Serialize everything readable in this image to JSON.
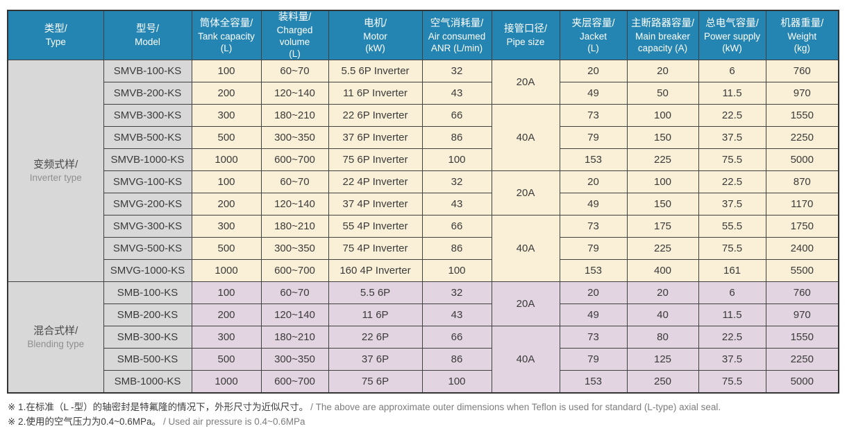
{
  "colors": {
    "header_bg": "#2585b2",
    "header_text": "#ffffff",
    "type_model_bg": "#d8d8d8",
    "inverter_rows_bg": "#faf0d7",
    "blending_rows_bg": "#e2d4e0",
    "border": "#404040",
    "body_text": "#3a3a3a",
    "secondary_text": "#8f8f8f"
  },
  "table": {
    "headers": [
      {
        "key": "type",
        "zh": "类型/",
        "en": "Type",
        "unit": ""
      },
      {
        "key": "model",
        "zh": "型号/",
        "en": "Model",
        "unit": ""
      },
      {
        "key": "tank-capacity",
        "zh": "筒体全容量/",
        "en": "Tank capacity",
        "unit": "(L)"
      },
      {
        "key": "charged-volume",
        "zh": "装料量/",
        "en": "Charged volume",
        "unit": "(L)"
      },
      {
        "key": "motor",
        "zh": "电机/",
        "en": "Motor",
        "unit": "(kW)"
      },
      {
        "key": "air-consumed",
        "zh": "空气消耗量/",
        "en": "Air consumed",
        "unit": "ANR (L/min)"
      },
      {
        "key": "pipe-size",
        "zh": "接管口径/",
        "en": "Pipe size",
        "unit": ""
      },
      {
        "key": "jacket",
        "zh": "夹层容量/",
        "en": "Jacket",
        "unit": "(L)"
      },
      {
        "key": "main-breaker",
        "zh": "主断路器容量/",
        "en": "Main breaker",
        "unit": "capacity (A)"
      },
      {
        "key": "power-supply",
        "zh": "总电气容量/",
        "en": "Power supply",
        "unit": "(kW)"
      },
      {
        "key": "weight",
        "zh": "机器重量/",
        "en": "Weight",
        "unit": "(kg)"
      }
    ],
    "groups": [
      {
        "type_zh": "变频式样/",
        "type_en": "Inverter type",
        "tint": "cream",
        "pipe_cells": [
          {
            "row": 0,
            "span": 2,
            "label": "20A"
          },
          {
            "row": 2,
            "span": 3,
            "label": "40A"
          },
          {
            "row": 5,
            "span": 2,
            "label": "20A"
          },
          {
            "row": 7,
            "span": 3,
            "label": "40A"
          }
        ],
        "rows": [
          {
            "model": "SMVB-100-KS",
            "tank": "100",
            "charged": "60~70",
            "motor": "5.5 6P Inverter",
            "air": "32",
            "jacket": "20",
            "breaker": "20",
            "power": "6",
            "weight": "760"
          },
          {
            "model": "SMVB-200-KS",
            "tank": "200",
            "charged": "120~140",
            "motor": "11 6P Inverter",
            "air": "43",
            "jacket": "49",
            "breaker": "50",
            "power": "11.5",
            "weight": "970"
          },
          {
            "model": "SMVB-300-KS",
            "tank": "300",
            "charged": "180~210",
            "motor": "22 6P Inverter",
            "air": "66",
            "jacket": "73",
            "breaker": "100",
            "power": "22.5",
            "weight": "1550"
          },
          {
            "model": "SMVB-500-KS",
            "tank": "500",
            "charged": "300~350",
            "motor": "37 6P Inverter",
            "air": "86",
            "jacket": "79",
            "breaker": "150",
            "power": "37.5",
            "weight": "2250"
          },
          {
            "model": "SMVB-1000-KS",
            "tank": "1000",
            "charged": "600~700",
            "motor": "75 6P Inverter",
            "air": "100",
            "jacket": "153",
            "breaker": "225",
            "power": "75.5",
            "weight": "5000"
          },
          {
            "model": "SMVG-100-KS",
            "tank": "100",
            "charged": "60~70",
            "motor": "22 4P Inverter",
            "air": "32",
            "jacket": "20",
            "breaker": "100",
            "power": "22.5",
            "weight": "870"
          },
          {
            "model": "SMVG-200-KS",
            "tank": "200",
            "charged": "120~140",
            "motor": "37 4P Inverter",
            "air": "43",
            "jacket": "49",
            "breaker": "150",
            "power": "37.5",
            "weight": "1170"
          },
          {
            "model": "SMVG-300-KS",
            "tank": "300",
            "charged": "180~210",
            "motor": "55 4P Inverter",
            "air": "66",
            "jacket": "73",
            "breaker": "175",
            "power": "55.5",
            "weight": "1750"
          },
          {
            "model": "SMVG-500-KS",
            "tank": "500",
            "charged": "300~350",
            "motor": "75 4P Inverter",
            "air": "86",
            "jacket": "79",
            "breaker": "225",
            "power": "75.5",
            "weight": "2400"
          },
          {
            "model": "SMVG-1000-KS",
            "tank": "1000",
            "charged": "600~700",
            "motor": "160 4P Inverter",
            "air": "100",
            "jacket": "153",
            "breaker": "400",
            "power": "161",
            "weight": "5500"
          }
        ]
      },
      {
        "type_zh": "混合式样/",
        "type_en": "Blending type",
        "tint": "pink",
        "pipe_cells": [
          {
            "row": 0,
            "span": 2,
            "label": "20A"
          },
          {
            "row": 2,
            "span": 3,
            "label": "40A"
          }
        ],
        "rows": [
          {
            "model": "SMB-100-KS",
            "tank": "100",
            "charged": "60~70",
            "motor": "5.5 6P",
            "air": "32",
            "jacket": "20",
            "breaker": "20",
            "power": "6",
            "weight": "760"
          },
          {
            "model": "SMB-200-KS",
            "tank": "200",
            "charged": "120~140",
            "motor": "11 6P",
            "air": "43",
            "jacket": "49",
            "breaker": "40",
            "power": "11.5",
            "weight": "970"
          },
          {
            "model": "SMB-300-KS",
            "tank": "300",
            "charged": "180~210",
            "motor": "22 6P",
            "air": "66",
            "jacket": "73",
            "breaker": "80",
            "power": "22.5",
            "weight": "1550"
          },
          {
            "model": "SMB-500-KS",
            "tank": "500",
            "charged": "300~350",
            "motor": "37 6P",
            "air": "86",
            "jacket": "79",
            "breaker": "125",
            "power": "37.5",
            "weight": "2250"
          },
          {
            "model": "SMB-1000-KS",
            "tank": "1000",
            "charged": "600~700",
            "motor": "75 6P",
            "air": "100",
            "jacket": "153",
            "breaker": "250",
            "power": "75.5",
            "weight": "5000"
          }
        ]
      }
    ]
  },
  "notes": [
    {
      "zh": "※ 1.在标准（L -型）的轴密封是特氟隆的情况下，外形尺寸为近似尺寸。",
      "en": "/ The above are approximate outer dimensions when Teflon is used for standard (L-type) axial seal."
    },
    {
      "zh": "※ 2.使用的空气压力为0.4~0.6MPa。",
      "en": "/ Used air pressure is 0.4~0.6MPa"
    }
  ]
}
